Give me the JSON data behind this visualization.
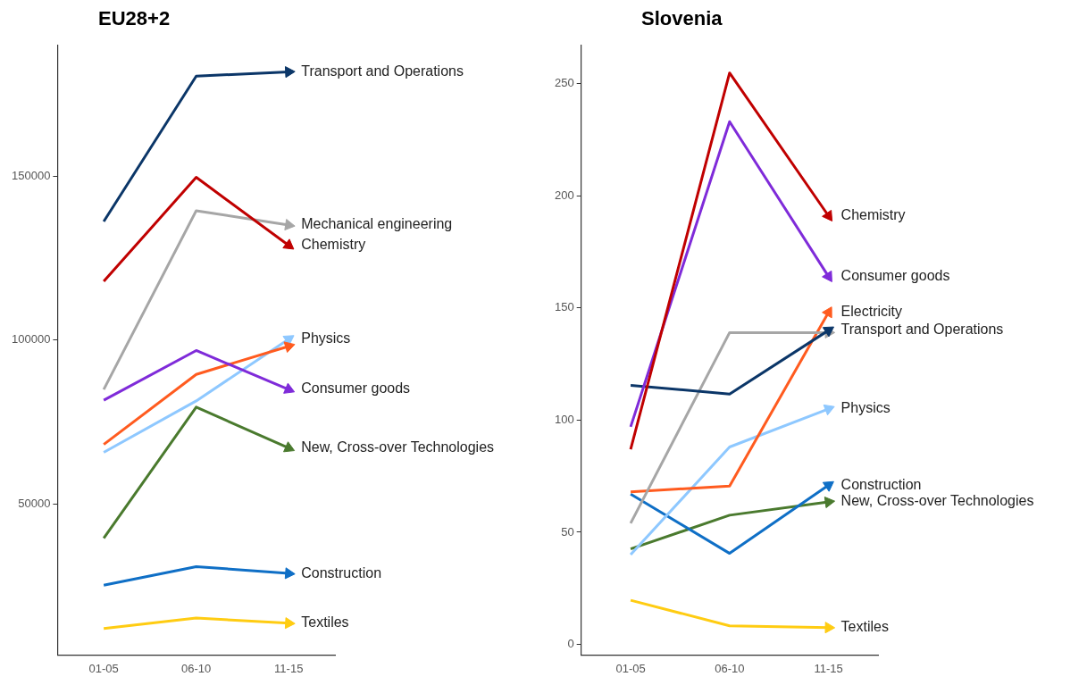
{
  "chart_data": [
    {
      "type": "line",
      "title": "EU28+2",
      "categories": [
        "01-05",
        "06-10",
        "11-15"
      ],
      "ylim": [
        3800,
        190000
      ],
      "yticks": [
        50000,
        100000,
        150000
      ],
      "grid": false,
      "legend": false,
      "marker": "none",
      "series": [
        {
          "name": "Transport and Operations",
          "color": "#0b3668",
          "values": [
            136200,
            180600,
            181900
          ]
        },
        {
          "name": "Chemistry",
          "color": "#c00000",
          "values": [
            117900,
            149700,
            128900
          ]
        },
        {
          "name": "Mechanical engineering",
          "color": "#a6a6a6",
          "values": [
            84900,
            139500,
            135100
          ]
        },
        {
          "name": "Consumer goods",
          "color": "#7f2bd9",
          "values": [
            81600,
            96800,
            84900
          ]
        },
        {
          "color": "#ff5b1f",
          "values": [
            68100,
            89500,
            98100
          ]
        },
        {
          "name": "Physics",
          "color": "#8ec8ff",
          "values": [
            65700,
            81400,
            100300
          ]
        },
        {
          "name": "New, Cross-over Technologies",
          "color": "#4a7a2e",
          "values": [
            39500,
            79500,
            67000
          ]
        },
        {
          "name": "Construction",
          "color": "#0f6fc6",
          "values": [
            25100,
            30800,
            28700
          ]
        },
        {
          "name": "Textiles",
          "color": "#ffcc12",
          "values": [
            11900,
            15100,
            13500
          ]
        }
      ]
    },
    {
      "type": "line",
      "title": "Slovenia",
      "categories": [
        "01-05",
        "06-10",
        "11-15"
      ],
      "ylim": [
        -4.7,
        267
      ],
      "yticks": [
        0,
        50,
        100,
        150,
        200,
        250
      ],
      "grid": false,
      "legend": false,
      "marker": "none",
      "series": [
        {
          "name": "Chemistry",
          "color": "#c00000",
          "values": [
            87,
            254.7,
            191
          ]
        },
        {
          "name": "Consumer goods",
          "color": "#7f2bd9",
          "values": [
            97,
            233,
            164
          ]
        },
        {
          "name": "Transport and Operations",
          "color": "#0b3668",
          "values": [
            115.5,
            111.6,
            140
          ]
        },
        {
          "color": "#a6a6a6",
          "values": [
            54,
            139,
            139
          ]
        },
        {
          "name": "Electricity",
          "color": "#ff5b1f",
          "values": [
            68,
            70.6,
            148
          ]
        },
        {
          "name": "Physics",
          "color": "#8ec8ff",
          "values": [
            40,
            88,
            105
          ]
        },
        {
          "name": "Construction",
          "color": "#0f6fc6",
          "values": [
            67,
            40.6,
            71
          ]
        },
        {
          "name": "New, Cross-over Technologies",
          "color": "#4a7a2e",
          "values": [
            42.6,
            57.6,
            63.5
          ]
        },
        {
          "name": "Textiles",
          "color": "#ffcc12",
          "values": [
            19.7,
            8.3,
            7.5
          ]
        }
      ]
    }
  ]
}
